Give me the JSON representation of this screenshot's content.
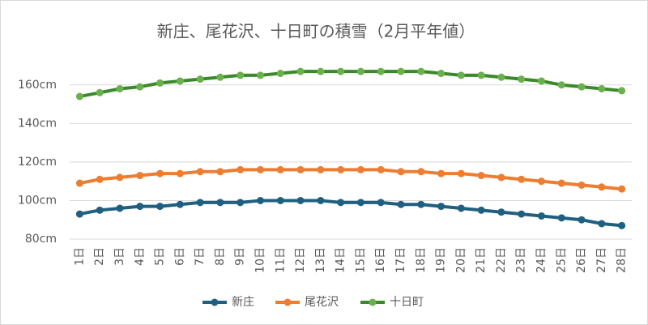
{
  "chart_data": {
    "type": "line",
    "title": "新庄、尾花沢、十日町の積雪（2月平年値）",
    "categories": [
      "1日",
      "2日",
      "3日",
      "4日",
      "5日",
      "6日",
      "7日",
      "8日",
      "9日",
      "10日",
      "11日",
      "12日",
      "13日",
      "14日",
      "15日",
      "16日",
      "17日",
      "18日",
      "19日",
      "20日",
      "21日",
      "22日",
      "23日",
      "24日",
      "25日",
      "26日",
      "27日",
      "28日"
    ],
    "series": [
      {
        "name": "新庄",
        "color": "#1f6080",
        "values": [
          93,
          95,
          96,
          97,
          97,
          98,
          99,
          99,
          99,
          100,
          100,
          100,
          100,
          99,
          99,
          99,
          98,
          98,
          97,
          96,
          95,
          94,
          93,
          92,
          91,
          90,
          88,
          87
        ]
      },
      {
        "name": "尾花沢",
        "color": "#ed7d31",
        "values": [
          109,
          111,
          112,
          113,
          114,
          114,
          115,
          115,
          116,
          116,
          116,
          116,
          116,
          116,
          116,
          116,
          115,
          115,
          114,
          114,
          113,
          112,
          111,
          110,
          109,
          108,
          107,
          106
        ]
      },
      {
        "name": "十日町",
        "color": "#3a8a2c",
        "values": [
          154,
          156,
          158,
          159,
          161,
          162,
          163,
          164,
          165,
          165,
          166,
          167,
          167,
          167,
          167,
          167,
          167,
          167,
          166,
          165,
          165,
          164,
          163,
          162,
          160,
          159,
          158,
          157
        ]
      }
    ],
    "ylim": [
      80,
      170
    ],
    "yticks": [
      {
        "value": 80,
        "label": "80cm"
      },
      {
        "value": 100,
        "label": "100cm"
      },
      {
        "value": 120,
        "label": "120cm"
      },
      {
        "value": 140,
        "label": "140cm"
      },
      {
        "value": 160,
        "label": "160cm"
      }
    ],
    "grid": true,
    "legend": "bottom"
  }
}
